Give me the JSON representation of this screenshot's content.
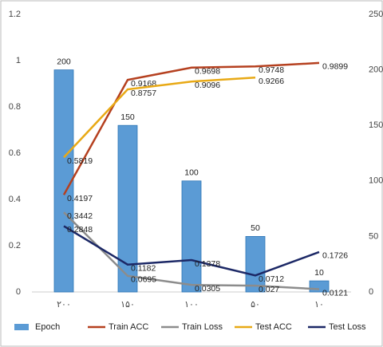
{
  "chart_data": {
    "type": "bar",
    "categories": [
      "۲۰۰",
      "۱۵۰",
      "۱۰۰",
      "۵۰",
      "۱۰"
    ],
    "ylim": [
      0,
      1.2
    ],
    "yticks": [
      0,
      0.2,
      0.4,
      0.6,
      0.8,
      1,
      1.2
    ],
    "y2lim": [
      0,
      250
    ],
    "y2ticks": [
      0,
      50,
      100,
      150,
      200,
      250
    ],
    "legend": "bottom",
    "series": [
      {
        "name": "Epoch",
        "type": "bar",
        "axis": "y2",
        "color": "#5b9bd5",
        "values": [
          200,
          150,
          100,
          50,
          10
        ]
      },
      {
        "name": "Train ACC",
        "type": "line",
        "color": "#b5401f",
        "values": [
          0.4197,
          0.9168,
          0.9698,
          0.9748,
          0.9899
        ]
      },
      {
        "name": "Train Loss",
        "type": "line",
        "color": "#8c8c8c",
        "values": [
          0.3442,
          0.0695,
          0.0305,
          0.027,
          0.0121
        ]
      },
      {
        "name": "Test ACC",
        "type": "line",
        "color": "#e8a915",
        "values": [
          0.5819,
          0.8757,
          0.9096,
          0.9266,
          null
        ]
      },
      {
        "name": "Test Loss",
        "type": "line",
        "color": "#1c2866",
        "values": [
          0.2848,
          0.1182,
          0.1378,
          0.0712,
          0.1726
        ]
      }
    ]
  }
}
